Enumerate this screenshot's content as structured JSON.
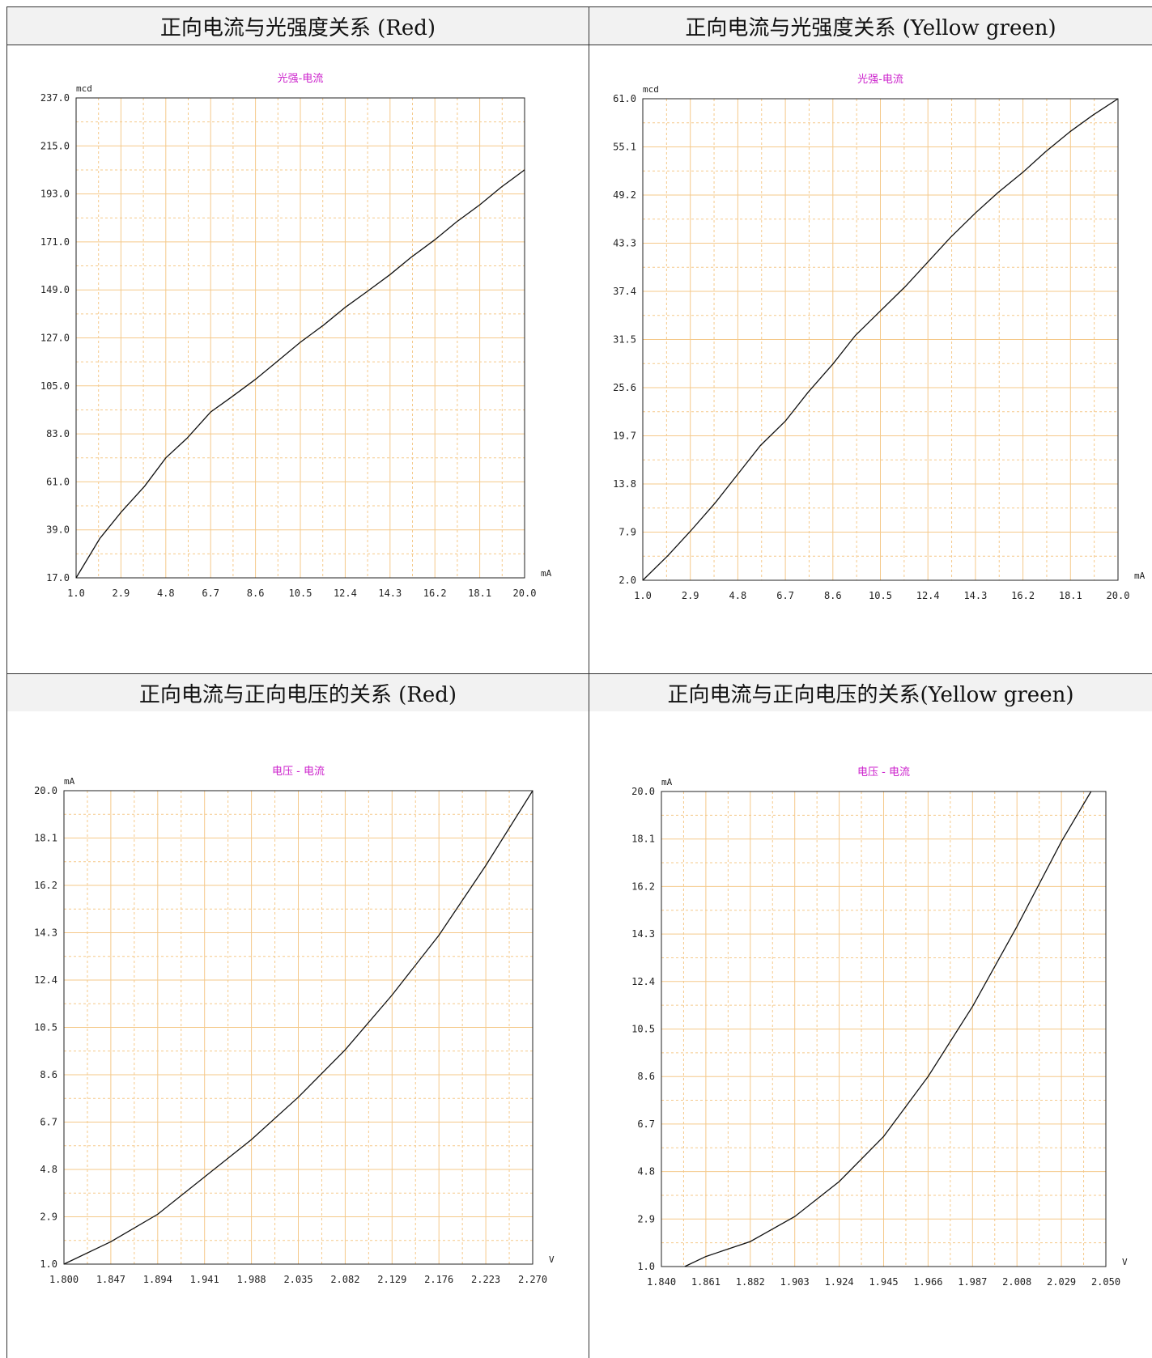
{
  "panels": [
    {
      "header": "正向电流与光强度关系  (Red)"
    },
    {
      "header": "正向电流与光强度关系  (Yellow green)"
    },
    {
      "header": "正向电流与正向电压的关系  (Red)"
    },
    {
      "header": "正向电流与正向电压的关系(Yellow green)"
    }
  ],
  "colors": {
    "grid": "#f5c98a",
    "curve": "#111111",
    "title": "#cc22cc",
    "header_bg": "#f2f2f2"
  },
  "chart_data": [
    {
      "type": "line",
      "title": "光强-电流",
      "xlabel": "mA",
      "ylabel": "mcd",
      "xlim": [
        1.0,
        20.0
      ],
      "ylim": [
        17.0,
        237.0
      ],
      "xticks": [
        "1.0",
        "2.9",
        "4.8",
        "6.7",
        "8.6",
        "10.5",
        "12.4",
        "14.3",
        "16.2",
        "18.1",
        "20.0"
      ],
      "yticks": [
        "17.0",
        "39.0",
        "61.0",
        "83.0",
        "105.0",
        "127.0",
        "149.0",
        "171.0",
        "193.0",
        "215.0",
        "237.0"
      ],
      "grid": true,
      "series": [
        {
          "x": [
            1.0,
            2.0,
            2.9,
            3.9,
            4.8,
            5.7,
            6.7,
            7.6,
            8.6,
            9.5,
            10.5,
            11.5,
            12.4,
            13.3,
            14.3,
            15.2,
            16.2,
            17.1,
            18.1,
            19.0,
            20.0
          ],
          "y": [
            17,
            35,
            47,
            59,
            72,
            81,
            93,
            100,
            108,
            116,
            125,
            133,
            141,
            148,
            156,
            164,
            172,
            180,
            188,
            196,
            204
          ]
        }
      ]
    },
    {
      "type": "line",
      "title": "光强-电流",
      "xlabel": "mA",
      "ylabel": "mcd",
      "xlim": [
        1.0,
        20.0
      ],
      "ylim": [
        2.0,
        61.0
      ],
      "xticks": [
        "1.0",
        "2.9",
        "4.8",
        "6.7",
        "8.6",
        "10.5",
        "12.4",
        "14.3",
        "16.2",
        "18.1",
        "20.0"
      ],
      "yticks": [
        "2.0",
        "7.9",
        "13.8",
        "19.7",
        "25.6",
        "31.5",
        "37.4",
        "43.3",
        "49.2",
        "55.1",
        "61.0"
      ],
      "grid": true,
      "series": [
        {
          "x": [
            1.0,
            2.0,
            2.9,
            3.9,
            4.8,
            5.7,
            6.7,
            7.6,
            8.6,
            9.5,
            10.5,
            11.5,
            12.4,
            13.3,
            14.3,
            15.2,
            16.2,
            17.1,
            18.1,
            19.0,
            20.0
          ],
          "y": [
            2.0,
            5.0,
            8.0,
            11.5,
            15.0,
            18.5,
            21.5,
            25.0,
            28.5,
            32.0,
            35.0,
            38.0,
            41.0,
            44.0,
            47.0,
            49.5,
            52.0,
            54.5,
            57.0,
            59.0,
            61.0
          ]
        }
      ]
    },
    {
      "type": "line",
      "title": "电压 - 电流",
      "xlabel": "V",
      "ylabel": "mA",
      "xlim": [
        1.8,
        2.27
      ],
      "ylim": [
        1.0,
        20.0
      ],
      "xticks": [
        "1.800",
        "1.847",
        "1.894",
        "1.941",
        "1.988",
        "2.035",
        "2.082",
        "2.129",
        "2.176",
        "2.223",
        "2.270"
      ],
      "yticks": [
        "1.0",
        "2.9",
        "4.8",
        "6.7",
        "8.6",
        "10.5",
        "12.4",
        "14.3",
        "16.2",
        "18.1",
        "20.0"
      ],
      "grid": true,
      "series": [
        {
          "x": [
            1.8,
            1.847,
            1.894,
            1.941,
            1.988,
            2.035,
            2.082,
            2.129,
            2.176,
            2.223,
            2.27
          ],
          "y": [
            1.0,
            1.9,
            3.0,
            4.5,
            6.0,
            7.7,
            9.6,
            11.8,
            14.2,
            17.0,
            20.0
          ]
        }
      ]
    },
    {
      "type": "line",
      "title": "电压 - 电流",
      "xlabel": "V",
      "ylabel": "mA",
      "xlim": [
        1.84,
        2.05
      ],
      "ylim": [
        1.0,
        20.0
      ],
      "xticks": [
        "1.840",
        "1.861",
        "1.882",
        "1.903",
        "1.924",
        "1.945",
        "1.966",
        "1.987",
        "2.008",
        "2.029",
        "2.050"
      ],
      "yticks": [
        "1.0",
        "2.9",
        "4.8",
        "6.7",
        "8.6",
        "10.5",
        "12.4",
        "14.3",
        "16.2",
        "18.1",
        "20.0"
      ],
      "grid": true,
      "series": [
        {
          "x": [
            1.851,
            1.861,
            1.882,
            1.903,
            1.924,
            1.945,
            1.966,
            1.987,
            2.008,
            2.029,
            2.043
          ],
          "y": [
            1.0,
            1.4,
            2.0,
            3.0,
            4.4,
            6.2,
            8.6,
            11.4,
            14.6,
            18.0,
            20.0
          ]
        }
      ]
    }
  ]
}
